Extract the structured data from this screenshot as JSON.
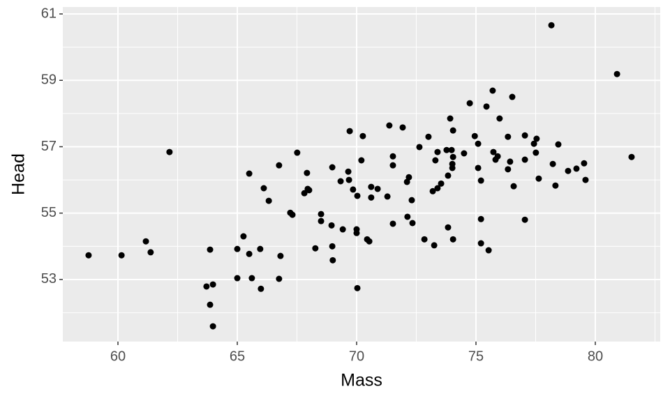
{
  "chart_data": {
    "type": "scatter",
    "x_label": "Mass",
    "y_label": "Head",
    "color": "#000000",
    "grid": true,
    "xlim": [
      57.69,
      82.72
    ],
    "ylim": [
      51.13,
      61.21
    ],
    "xticks": [
      60,
      65,
      70,
      75,
      80
    ],
    "yticks": [
      53,
      55,
      57,
      59,
      61
    ],
    "x": [
      58.77,
      60.15,
      61.17,
      61.37,
      62.16,
      63.71,
      63.86,
      63.98,
      63.86,
      63.98,
      65.0,
      65.0,
      65.26,
      65.5,
      65.5,
      65.61,
      65.96,
      65.99,
      66.11,
      66.32,
      66.75,
      66.81,
      66.75,
      67.22,
      67.31,
      67.51,
      67.81,
      67.95,
      67.92,
      68.01,
      68.27,
      68.51,
      68.51,
      68.98,
      68.98,
      68.95,
      69.0,
      69.33,
      69.42,
      69.71,
      69.65,
      69.68,
      69.85,
      70.03,
      70.0,
      70.0,
      70.03,
      70.2,
      70.26,
      70.44,
      70.53,
      70.61,
      70.61,
      70.88,
      71.29,
      71.37,
      71.52,
      71.52,
      71.52,
      71.93,
      72.11,
      72.19,
      72.13,
      72.31,
      72.34,
      72.63,
      72.84,
      73.01,
      73.19,
      73.25,
      73.3,
      73.39,
      73.39,
      73.54,
      73.77,
      73.83,
      73.83,
      73.92,
      73.98,
      74.04,
      74.04,
      74.01,
      74.01,
      74.04,
      74.5,
      74.74,
      74.95,
      75.09,
      75.09,
      75.21,
      75.21,
      75.21,
      75.44,
      75.53,
      75.7,
      75.73,
      75.82,
      75.91,
      75.99,
      76.34,
      76.34,
      76.43,
      76.52,
      76.58,
      77.05,
      77.05,
      77.05,
      77.43,
      77.54,
      77.51,
      77.63,
      78.16,
      78.22,
      78.33,
      78.45,
      78.86,
      79.21,
      79.53,
      79.59,
      80.91,
      81.52
    ],
    "values": [
      53.73,
      53.73,
      54.15,
      53.82,
      56.84,
      52.79,
      53.9,
      52.85,
      52.24,
      51.59,
      53.92,
      53.04,
      54.3,
      56.19,
      53.77,
      53.04,
      53.92,
      52.72,
      55.75,
      55.37,
      56.44,
      53.71,
      53.02,
      55.01,
      54.95,
      56.82,
      55.6,
      55.73,
      56.21,
      55.69,
      53.94,
      54.97,
      54.76,
      56.38,
      54.0,
      54.63,
      53.58,
      55.96,
      54.51,
      57.47,
      56.25,
      56.0,
      55.71,
      55.52,
      54.51,
      54.4,
      52.74,
      56.59,
      57.32,
      54.21,
      54.15,
      55.79,
      55.47,
      55.73,
      55.5,
      57.64,
      56.71,
      56.44,
      54.68,
      57.58,
      55.94,
      56.08,
      54.89,
      55.39,
      54.7,
      56.99,
      54.21,
      57.3,
      55.66,
      54.03,
      56.59,
      56.84,
      55.75,
      55.89,
      56.9,
      56.13,
      54.57,
      57.85,
      56.9,
      57.49,
      56.69,
      56.48,
      56.36,
      54.21,
      56.8,
      58.31,
      57.32,
      57.09,
      56.36,
      55.98,
      54.82,
      54.09,
      58.21,
      53.88,
      58.69,
      56.84,
      56.61,
      56.71,
      57.85,
      56.32,
      57.3,
      56.55,
      58.5,
      55.81,
      56.61,
      57.34,
      54.8,
      57.09,
      57.24,
      56.82,
      56.04,
      60.66,
      56.48,
      55.83,
      57.07,
      56.27,
      56.34,
      56.5,
      56.0,
      59.19,
      56.69
    ]
  }
}
